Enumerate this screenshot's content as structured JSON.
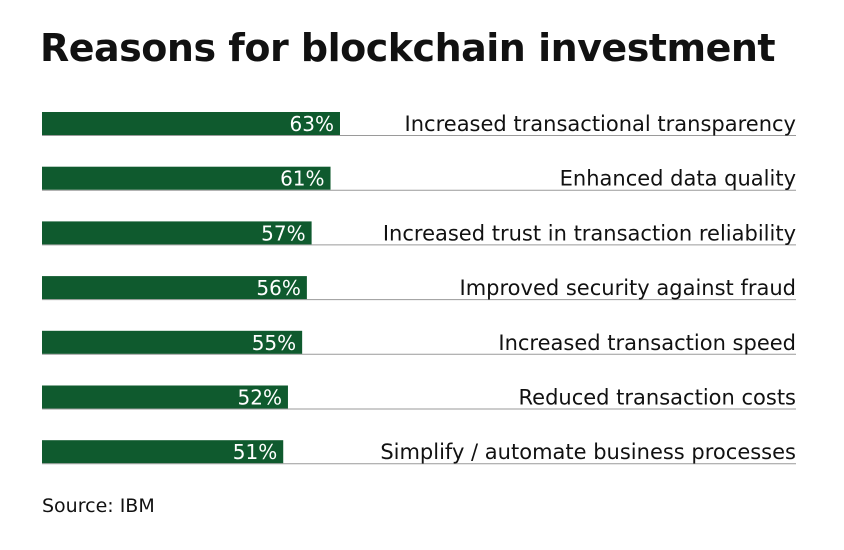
{
  "chart_data": {
    "type": "bar",
    "orientation": "horizontal",
    "title": "Reasons for blockchain investment",
    "categories": [
      "Increased transactional transparency",
      "Enhanced data quality",
      "Increased trust in transaction reliability",
      "Improved security against fraud",
      "Increased transaction speed",
      "Reduced transaction costs",
      "Simplify / automate business processes"
    ],
    "values": [
      63,
      61,
      57,
      56,
      55,
      52,
      51
    ],
    "value_labels": [
      "63%",
      "61%",
      "57%",
      "56%",
      "55%",
      "52%",
      "51%"
    ],
    "unit": "%",
    "xlim": [
      0,
      100
    ],
    "grid": false,
    "bar_color": "#0f5a2e",
    "source": "Source: IBM"
  }
}
